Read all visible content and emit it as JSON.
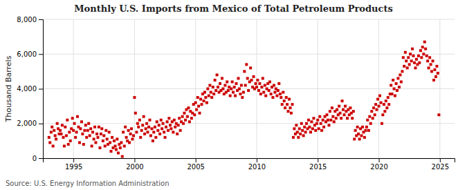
{
  "chart_data": {
    "type": "scatter",
    "title": "Monthly U.S. Imports from Mexico of Total Petroleum Products",
    "ylabel": "Thousand Barrels",
    "annotation": "Source: U.S. Energy Information Administration",
    "color": "#cc0000",
    "marker": "square",
    "grid": true,
    "xlim": [
      1992.5,
      2026.2
    ],
    "xticks": [
      1995,
      2000,
      2005,
      2010,
      2015,
      2020,
      2025
    ],
    "ylim": [
      0,
      8000
    ],
    "yticks": [
      0,
      {
        "value": 2000,
        "label": "2,000"
      },
      {
        "value": 4000,
        "label": "4,000"
      },
      {
        "value": 6000,
        "label": "6,000"
      },
      {
        "value": 8000,
        "label": "8,000"
      }
    ],
    "x": [
      1993.0,
      1993.08,
      1993.17,
      1993.25,
      1993.33,
      1993.42,
      1993.5,
      1993.58,
      1993.67,
      1993.75,
      1993.83,
      1993.92,
      1994.0,
      1994.08,
      1994.17,
      1994.25,
      1994.33,
      1994.42,
      1994.5,
      1994.58,
      1994.67,
      1994.75,
      1994.83,
      1994.92,
      1995.0,
      1995.08,
      1995.17,
      1995.25,
      1995.33,
      1995.42,
      1995.5,
      1995.58,
      1995.67,
      1995.75,
      1995.83,
      1995.92,
      1996.0,
      1996.08,
      1996.17,
      1996.25,
      1996.33,
      1996.42,
      1996.5,
      1996.58,
      1996.67,
      1996.75,
      1996.83,
      1996.92,
      1997.0,
      1997.08,
      1997.17,
      1997.25,
      1997.33,
      1997.42,
      1997.5,
      1997.58,
      1997.67,
      1997.75,
      1997.83,
      1997.92,
      1998.0,
      1998.08,
      1998.17,
      1998.25,
      1998.33,
      1998.42,
      1998.5,
      1998.58,
      1998.67,
      1998.75,
      1998.83,
      1998.92,
      1999.0,
      1999.08,
      1999.17,
      1999.25,
      1999.33,
      1999.42,
      1999.5,
      1999.58,
      1999.67,
      1999.75,
      1999.83,
      1999.92,
      2000.0,
      2000.08,
      2000.17,
      2000.25,
      2000.33,
      2000.42,
      2000.5,
      2000.58,
      2000.67,
      2000.75,
      2000.83,
      2000.92,
      2001.0,
      2001.08,
      2001.17,
      2001.25,
      2001.33,
      2001.42,
      2001.5,
      2001.58,
      2001.67,
      2001.75,
      2001.83,
      2001.92,
      2002.0,
      2002.08,
      2002.17,
      2002.25,
      2002.33,
      2002.42,
      2002.5,
      2002.58,
      2002.67,
      2002.75,
      2002.83,
      2002.92,
      2003.0,
      2003.08,
      2003.17,
      2003.25,
      2003.33,
      2003.42,
      2003.5,
      2003.58,
      2003.67,
      2003.75,
      2003.83,
      2003.92,
      2004.0,
      2004.08,
      2004.17,
      2004.25,
      2004.33,
      2004.42,
      2004.5,
      2004.58,
      2004.67,
      2004.75,
      2004.83,
      2004.92,
      2005.0,
      2005.08,
      2005.17,
      2005.25,
      2005.33,
      2005.42,
      2005.5,
      2005.58,
      2005.67,
      2005.75,
      2005.83,
      2005.92,
      2006.0,
      2006.08,
      2006.17,
      2006.25,
      2006.33,
      2006.42,
      2006.5,
      2006.58,
      2006.67,
      2006.75,
      2006.83,
      2006.92,
      2007.0,
      2007.08,
      2007.17,
      2007.25,
      2007.33,
      2007.42,
      2007.5,
      2007.58,
      2007.67,
      2007.75,
      2007.83,
      2007.92,
      2008.0,
      2008.08,
      2008.17,
      2008.25,
      2008.33,
      2008.42,
      2008.5,
      2008.58,
      2008.67,
      2008.75,
      2008.83,
      2008.92,
      2009.0,
      2009.08,
      2009.17,
      2009.25,
      2009.33,
      2009.42,
      2009.5,
      2009.58,
      2009.67,
      2009.75,
      2009.83,
      2009.92,
      2010.0,
      2010.08,
      2010.17,
      2010.25,
      2010.33,
      2010.42,
      2010.5,
      2010.58,
      2010.67,
      2010.75,
      2010.83,
      2010.92,
      2011.0,
      2011.08,
      2011.17,
      2011.25,
      2011.33,
      2011.42,
      2011.5,
      2011.58,
      2011.67,
      2011.75,
      2011.83,
      2011.92,
      2012.0,
      2012.08,
      2012.17,
      2012.25,
      2012.33,
      2012.42,
      2012.5,
      2012.58,
      2012.67,
      2012.75,
      2012.83,
      2012.92,
      2013.0,
      2013.08,
      2013.17,
      2013.25,
      2013.33,
      2013.42,
      2013.5,
      2013.58,
      2013.67,
      2013.75,
      2013.83,
      2013.92,
      2014.0,
      2014.08,
      2014.17,
      2014.25,
      2014.33,
      2014.42,
      2014.5,
      2014.58,
      2014.67,
      2014.75,
      2014.83,
      2014.92,
      2015.0,
      2015.08,
      2015.17,
      2015.25,
      2015.33,
      2015.42,
      2015.5,
      2015.58,
      2015.67,
      2015.75,
      2015.83,
      2015.92,
      2016.0,
      2016.08,
      2016.17,
      2016.25,
      2016.33,
      2016.42,
      2016.5,
      2016.58,
      2016.67,
      2016.75,
      2016.83,
      2016.92,
      2017.0,
      2017.08,
      2017.17,
      2017.25,
      2017.33,
      2017.42,
      2017.5,
      2017.58,
      2017.67,
      2017.75,
      2017.83,
      2017.92,
      2018.0,
      2018.08,
      2018.17,
      2018.25,
      2018.33,
      2018.42,
      2018.5,
      2018.58,
      2018.67,
      2018.75,
      2018.83,
      2018.92,
      2019.0,
      2019.08,
      2019.17,
      2019.25,
      2019.33,
      2019.42,
      2019.5,
      2019.58,
      2019.67,
      2019.75,
      2019.83,
      2019.92,
      2020.0,
      2020.08,
      2020.17,
      2020.25,
      2020.33,
      2020.42,
      2020.5,
      2020.58,
      2020.67,
      2020.75,
      2020.83,
      2020.92,
      2021.0,
      2021.08,
      2021.17,
      2021.25,
      2021.33,
      2021.42,
      2021.5,
      2021.58,
      2021.67,
      2021.75,
      2021.83,
      2021.92,
      2022.0,
      2022.08,
      2022.17,
      2022.25,
      2022.33,
      2022.42,
      2022.5,
      2022.58,
      2022.67,
      2022.75,
      2022.83,
      2022.92,
      2023.0,
      2023.08,
      2023.17,
      2023.25,
      2023.33,
      2023.42,
      2023.5,
      2023.58,
      2023.67,
      2023.75,
      2023.83,
      2023.92,
      2024.0,
      2024.08,
      2024.17,
      2024.25,
      2024.33,
      2024.42,
      2024.5,
      2024.58,
      2024.67,
      2024.75,
      2024.83,
      2024.92
    ],
    "values": [
      1200,
      900,
      1500,
      1800,
      700,
      1600,
      1300,
      1100,
      2000,
      1700,
      1400,
      1600,
      1400,
      1900,
      1200,
      700,
      1800,
      1300,
      2200,
      800,
      1500,
      1000,
      1700,
      2300,
      1600,
      2000,
      1200,
      1500,
      2400,
      1800,
      900,
      1700,
      2100,
      1400,
      800,
      1600,
      1900,
      1200,
      1600,
      2000,
      1300,
      1700,
      700,
      1500,
      1100,
      1800,
      900,
      1400,
      1200,
      1800,
      600,
      1400,
      1700,
      1000,
      1300,
      700,
      1600,
      1100,
      800,
      1500,
      900,
      400,
      1200,
      600,
      1000,
      700,
      500,
      1100,
      300,
      800,
      600,
      900,
      100,
      1500,
      700,
      1800,
      1200,
      1000,
      1600,
      900,
      1400,
      1700,
      1100,
      1300,
      3500,
      2600,
      1500,
      2000,
      1800,
      2200,
      1200,
      1600,
      1900,
      2400,
      1400,
      1700,
      2000,
      1500,
      1800,
      2200,
      1300,
      1700,
      1000,
      1500,
      1800,
      1200,
      2100,
      1600,
      1900,
      1400,
      2200,
      1700,
      2000,
      1500,
      1200,
      1800,
      2100,
      1600,
      2300,
      1900,
      1700,
      2100,
      1500,
      2200,
      1800,
      2000,
      1400,
      1900,
      2300,
      1600,
      2100,
      2400,
      2000,
      2600,
      2200,
      2800,
      2400,
      2900,
      2100,
      2700,
      2300,
      2600,
      3100,
      2500,
      3200,
      2800,
      3500,
      3000,
      2600,
      3400,
      3100,
      3700,
      3300,
      3800,
      3500,
      3200,
      4000,
      3600,
      4200,
      3800,
      3500,
      4100,
      3700,
      4500,
      3900,
      4800,
      4100,
      3800,
      4300,
      3900,
      4600,
      4000,
      3700,
      4200,
      3800,
      4400,
      3900,
      4100,
      3600,
      4000,
      4400,
      3800,
      4100,
      3600,
      4300,
      3900,
      4600,
      4000,
      3700,
      4200,
      3500,
      3800,
      5000,
      4200,
      5400,
      4600,
      3900,
      4400,
      5200,
      4500,
      4100,
      4700,
      4000,
      4300,
      4100,
      4500,
      3900,
      4300,
      3700,
      4100,
      4600,
      3800,
      4200,
      3600,
      4000,
      4300,
      3900,
      4400,
      3700,
      4100,
      3500,
      4200,
      3800,
      4000,
      3600,
      3900,
      4300,
      3700,
      3500,
      3100,
      3800,
      3300,
      2900,
      3500,
      3100,
      2700,
      3400,
      2900,
      2600,
      3100,
      1200,
      1700,
      1400,
      1900,
      1500,
      1200,
      1700,
      1400,
      2000,
      1600,
      1300,
      1800,
      1500,
      2000,
      1700,
      2200,
      1800,
      1500,
      2100,
      1700,
      2300,
      1900,
      1600,
      2000,
      2200,
      1700,
      2400,
      2000,
      1600,
      2200,
      1800,
      2400,
      2100,
      2500,
      2200,
      1900,
      2700,
      2200,
      2900,
      2400,
      2100,
      2700,
      2300,
      2800,
      2500,
      3000,
      2600,
      2300,
      3300,
      2800,
      2500,
      3000,
      2700,
      2300,
      2800,
      2500,
      2900,
      2600,
      2300,
      2700,
      1100,
      1600,
      1300,
      1800,
      1400,
      1100,
      1700,
      1300,
      1800,
      1500,
      1200,
      1600,
      1800,
      2200,
      1600,
      2400,
      2000,
      2700,
      2300,
      2900,
      2500,
      3100,
      2800,
      3400,
      3000,
      3600,
      3200,
      2000,
      2500,
      3100,
      2700,
      3300,
      2900,
      3500,
      3100,
      3700,
      4200,
      3700,
      4500,
      4000,
      3600,
      4300,
      3900,
      4600,
      4100,
      4800,
      4400,
      5000,
      5800,
      5300,
      6100,
      5600,
      5200,
      5800,
      5400,
      6000,
      5600,
      6300,
      5900,
      5500,
      5200,
      5700,
      5400,
      5900,
      5500,
      6200,
      5800,
      6400,
      6000,
      6700,
      6300,
      5900,
      5600,
      5200,
      5800,
      5400,
      5000,
      5600,
      4500,
      5100,
      4700,
      5300,
      4900,
      2500
    ]
  }
}
